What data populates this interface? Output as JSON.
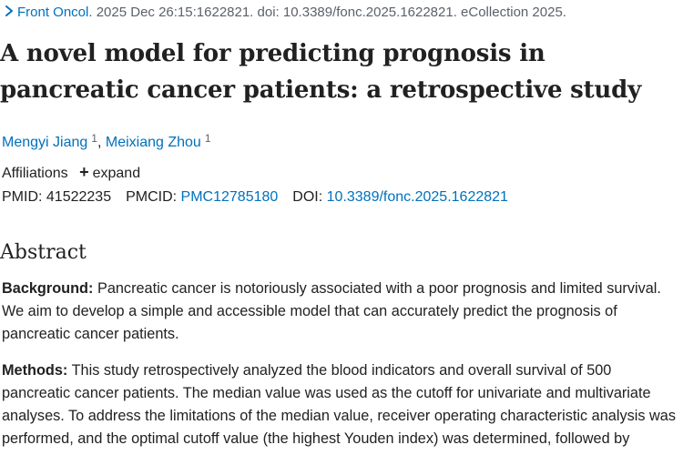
{
  "citation": {
    "journal": "Front Oncol.",
    "details": "2025 Dec 26:15:1622821. doi: 10.3389/fonc.2025.1622821. eCollection 2025."
  },
  "article": {
    "title": "A novel model for predicting prognosis in pancreatic cancer patients: a retrospective study"
  },
  "authors": [
    {
      "name": "Mengyi Jiang",
      "affiliation_ref": "1"
    },
    {
      "name": "Meixiang Zhou",
      "affiliation_ref": "1"
    }
  ],
  "affiliations": {
    "label": "Affiliations",
    "expand_label": "expand"
  },
  "identifiers": {
    "pmid_label": "PMID:",
    "pmid": "41522235",
    "pmcid_label": "PMCID:",
    "pmcid": "PMC12785180",
    "doi_label": "DOI:",
    "doi": "10.3389/fonc.2025.1622821"
  },
  "abstract": {
    "heading": "Abstract",
    "sections": [
      {
        "label": "Background:",
        "text": "Pancreatic cancer is notoriously associated with a poor prognosis and limited survival. We aim to develop a simple and accessible model that can accurately predict the prognosis of pancreatic cancer patients."
      },
      {
        "label": "Methods:",
        "text": "This study retrospectively analyzed the blood indicators and overall survival of 500 pancreatic cancer patients. The median value was used as the cutoff for univariate and multivariate analyses. To address the limitations of the median value, receiver operating characteristic analysis was performed, and the optimal cutoff value (the highest Youden index) was determined, followed by"
      }
    ]
  },
  "colors": {
    "link": "#0071bc",
    "text": "#212121",
    "muted": "#5b616b"
  }
}
